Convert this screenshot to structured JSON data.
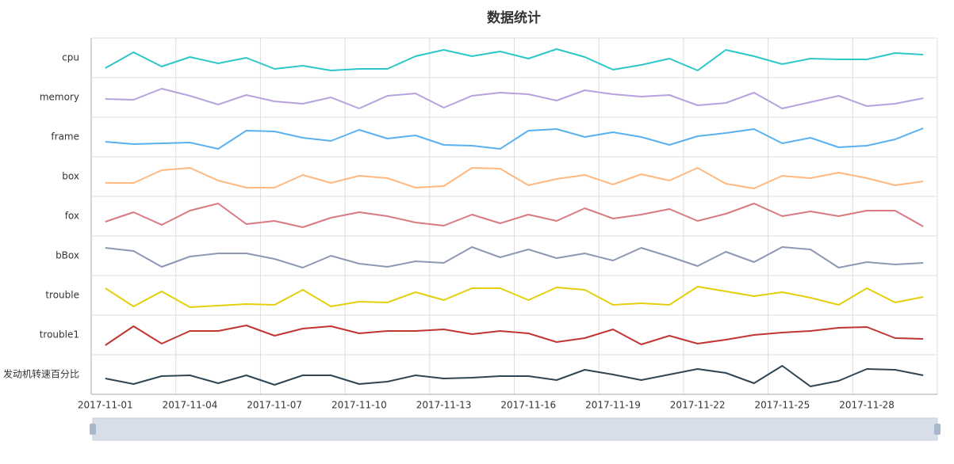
{
  "chart_data": {
    "type": "line",
    "title": "数据统计",
    "categories": [
      "2017-11-01",
      null,
      null,
      "2017-11-04",
      null,
      null,
      "2017-11-07",
      null,
      null,
      "2017-11-10",
      null,
      null,
      "2017-11-13",
      null,
      null,
      "2017-11-16",
      null,
      null,
      "2017-11-19",
      null,
      null,
      "2017-11-22",
      null,
      null,
      "2017-11-25",
      null,
      null,
      "2017-11-28",
      null,
      null
    ],
    "ylim": [
      0,
      100
    ],
    "series": [
      {
        "name": "cpu",
        "color": "#2ec7c9",
        "values": [
          24,
          64,
          28,
          52,
          36,
          50,
          22,
          30,
          18,
          22,
          22,
          54,
          70,
          54,
          66,
          48,
          72,
          52,
          20,
          32,
          48,
          18,
          70,
          54,
          34,
          48,
          46,
          46,
          62,
          58
        ]
      },
      {
        "name": "memory",
        "color": "#b6a2de",
        "values": [
          46,
          44,
          72,
          54,
          32,
          56,
          40,
          34,
          50,
          22,
          54,
          60,
          24,
          54,
          62,
          58,
          42,
          68,
          58,
          52,
          56,
          30,
          36,
          62,
          22,
          38,
          54,
          28,
          34,
          48
        ]
      },
      {
        "name": "frame",
        "color": "#5ab1ef",
        "values": [
          38,
          32,
          34,
          36,
          20,
          66,
          64,
          48,
          40,
          68,
          46,
          54,
          30,
          28,
          20,
          66,
          70,
          50,
          62,
          50,
          30,
          52,
          60,
          70,
          34,
          48,
          24,
          28,
          44,
          72
        ]
      },
      {
        "name": "box",
        "color": "#ffb980",
        "values": [
          34,
          34,
          66,
          72,
          40,
          22,
          22,
          54,
          34,
          52,
          46,
          22,
          26,
          72,
          70,
          28,
          44,
          54,
          30,
          56,
          40,
          72,
          32,
          20,
          52,
          46,
          60,
          46,
          28,
          38
        ]
      },
      {
        "name": "fox",
        "color": "#d87a80",
        "values": [
          36,
          60,
          28,
          64,
          82,
          30,
          38,
          22,
          46,
          60,
          50,
          34,
          26,
          54,
          32,
          54,
          38,
          70,
          44,
          54,
          68,
          38,
          56,
          82,
          50,
          62,
          50,
          64,
          64,
          24
        ]
      },
      {
        "name": "bBox",
        "color": "#8d98b3",
        "values": [
          70,
          62,
          22,
          48,
          56,
          56,
          42,
          20,
          50,
          30,
          22,
          36,
          32,
          72,
          46,
          66,
          44,
          56,
          38,
          70,
          48,
          24,
          60,
          34,
          72,
          66,
          20,
          34,
          28,
          32
        ]
      },
      {
        "name": "trouble",
        "color": "#e5cf0d",
        "values": [
          68,
          22,
          60,
          20,
          24,
          28,
          26,
          64,
          22,
          34,
          32,
          58,
          38,
          68,
          68,
          38,
          70,
          64,
          26,
          30,
          26,
          72,
          60,
          48,
          58,
          44,
          26,
          68,
          32,
          46
        ]
      },
      {
        "name": "trouble1",
        "color": "#c23531",
        "values": [
          24,
          72,
          28,
          60,
          60,
          74,
          48,
          66,
          72,
          54,
          60,
          60,
          64,
          52,
          60,
          54,
          32,
          42,
          64,
          26,
          48,
          28,
          38,
          50,
          56,
          60,
          68,
          70,
          42,
          40
        ]
      },
      {
        "name": "发动机转速百分比",
        "color": "#2f4554",
        "values": [
          40,
          26,
          46,
          48,
          28,
          48,
          24,
          48,
          48,
          26,
          32,
          48,
          40,
          42,
          46,
          46,
          36,
          62,
          50,
          36,
          50,
          64,
          54,
          28,
          72,
          20,
          34,
          64,
          62,
          48
        ]
      }
    ]
  }
}
